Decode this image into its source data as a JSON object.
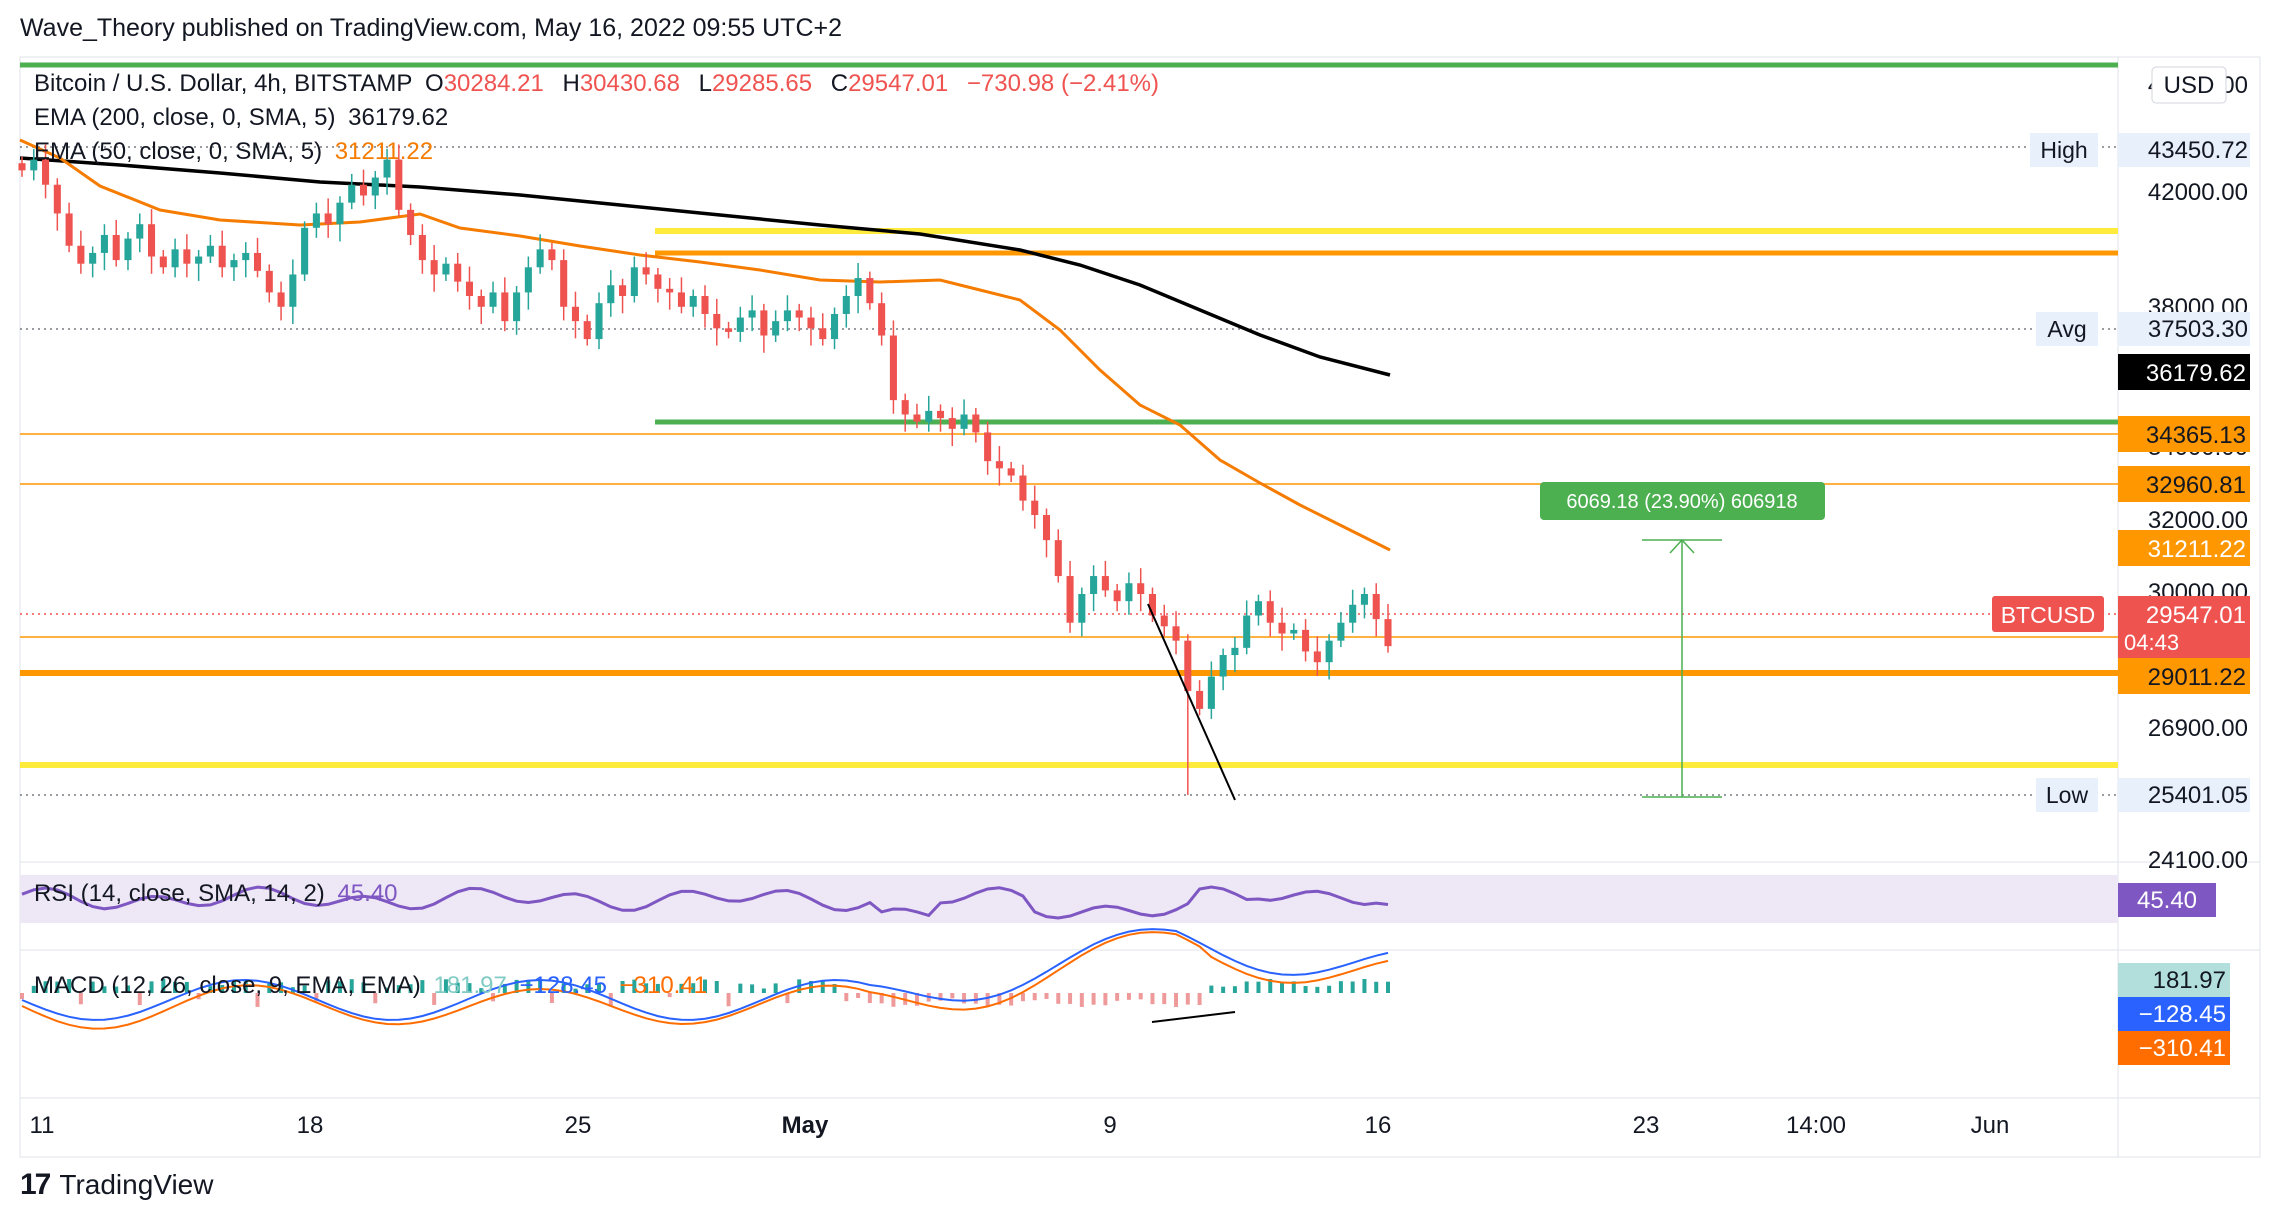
{
  "header": {
    "published_by": "Wave_Theory published on TradingView.com, May 16, 2022 09:55 UTC+2"
  },
  "legend": {
    "symbol": "Bitcoin / U.S. Dollar, 4h, BITSTAMP",
    "o_label": "O",
    "o": "30284.21",
    "h_label": "H",
    "h": "30430.68",
    "l_label": "L",
    "l": "29285.65",
    "c_label": "C",
    "c": "29547.01",
    "change": "−730.98 (−2.41%)",
    "ema200_label": "EMA (200, close, 0, SMA, 5)",
    "ema200_value": "36179.62",
    "ema50_label": "EMA (50, close, 0, SMA, 5)",
    "ema50_value": "31211.22"
  },
  "currency": "USD",
  "price_axis": {
    "ticks": [
      "46000.00",
      "42000.00",
      "38000.00",
      "34000.00",
      "32000.00",
      "30000.00",
      "26900.00",
      "24100.00"
    ],
    "high_label": "High",
    "high_value": "43450.72",
    "avg_label": "Avg",
    "avg_value": "37503.30",
    "low_label": "Low",
    "low_value": "25401.05",
    "ema200_tag": "36179.62",
    "level_34365": "34365.13",
    "level_32960": "32960.81",
    "ema50_tag": "31211.22",
    "symbol_tag": "BTCUSD",
    "last_price": "29547.01",
    "countdown": "04:43",
    "level_29011": "29011.22"
  },
  "measure": {
    "label": "6069.18 (23.90%) 606918"
  },
  "rsi": {
    "label": "RSI (14, close, SMA, 14, 2)",
    "value": "45.40",
    "tag": "45.40"
  },
  "macd": {
    "label": "MACD (12, 26, close, 9, EMA, EMA)",
    "hist": "181.97",
    "macd": "−128.45",
    "signal": "−310.41"
  },
  "time_axis": {
    "labels": [
      "11",
      "18",
      "25",
      "May",
      "9",
      "16",
      "23",
      "14:00",
      "Jun"
    ]
  },
  "branding": {
    "logo_text": "TradingView"
  },
  "colors": {
    "up": "#26a69a",
    "down": "#ef5350",
    "ema50": "#f57c00",
    "ema200": "#000000",
    "green_line": "#4caf50",
    "yellow_line": "#ffeb3b",
    "orange_line": "#ff9800",
    "rsi": "#7e57c2",
    "macd": "#2962ff",
    "signal": "#ff6d00"
  },
  "chart_data": {
    "type": "candlestick",
    "interval": "4h",
    "ylim": [
      24100,
      46000
    ],
    "ohlc_last": {
      "o": 30284.21,
      "h": 30430.68,
      "l": 29285.65,
      "c": 29547.01
    },
    "high": 43450.72,
    "low": 25401.05,
    "avg": 37503.3,
    "ema200": 36179.62,
    "ema50": 31211.22,
    "horizontal_levels": [
      {
        "price": 45500,
        "color": "green",
        "style": "thick"
      },
      {
        "price": 40800,
        "color": "yellow",
        "style": "thick"
      },
      {
        "price": 40150,
        "color": "orange",
        "style": "thick"
      },
      {
        "price": 34365.13,
        "color": "orange",
        "style": "thin"
      },
      {
        "price": 34650,
        "color": "green",
        "style": "thick"
      },
      {
        "price": 32960.81,
        "color": "orange",
        "style": "thin"
      },
      {
        "price": 29011.22,
        "color": "orange",
        "style": "thick"
      },
      {
        "price": 29700,
        "color": "orange",
        "style": "thin"
      },
      {
        "price": 26150,
        "color": "yellow",
        "style": "thick"
      }
    ],
    "closes_approx": [
      42800,
      43100,
      42400,
      41600,
      40700,
      40200,
      40500,
      41000,
      40300,
      40900,
      41300,
      40400,
      40100,
      40600,
      40200,
      40400,
      40700,
      40100,
      40300,
      40500,
      40000,
      39400,
      39000,
      39900,
      41200,
      41600,
      41300,
      41900,
      42400,
      42100,
      42600,
      43100,
      41700,
      41000,
      40300,
      39900,
      40200,
      39700,
      39300,
      39000,
      39400,
      38600,
      39400,
      40100,
      40600,
      40300,
      39000,
      38600,
      38100,
      39100,
      39600,
      39300,
      40100,
      39900,
      39500,
      39400,
      39000,
      39300,
      38800,
      38400,
      38300,
      38700,
      38900,
      38200,
      38600,
      38900,
      38700,
      38400,
      38100,
      38800,
      39300,
      39800,
      39100,
      38200,
      36400,
      36000,
      35800,
      36100,
      35900,
      35600,
      36000,
      35500,
      34700,
      34500,
      34300,
      33600,
      33200,
      32500,
      31500,
      30200,
      31000,
      31500,
      31100,
      30800,
      31300,
      31000,
      30400,
      30100,
      29700,
      28300,
      27800,
      28700,
      29300,
      29500,
      30400,
      30800,
      30200,
      29900,
      30000,
      29400,
      29100,
      29700,
      30200,
      30700,
      31000,
      30300,
      29547
    ],
    "measure": {
      "from": 25401.05,
      "to": 31470,
      "label": "6069.18 (23.90%) 606918"
    },
    "rsi": {
      "last": 45.4
    },
    "macd": {
      "histogram": 181.97,
      "macd": -128.45,
      "signal": -310.41
    }
  }
}
